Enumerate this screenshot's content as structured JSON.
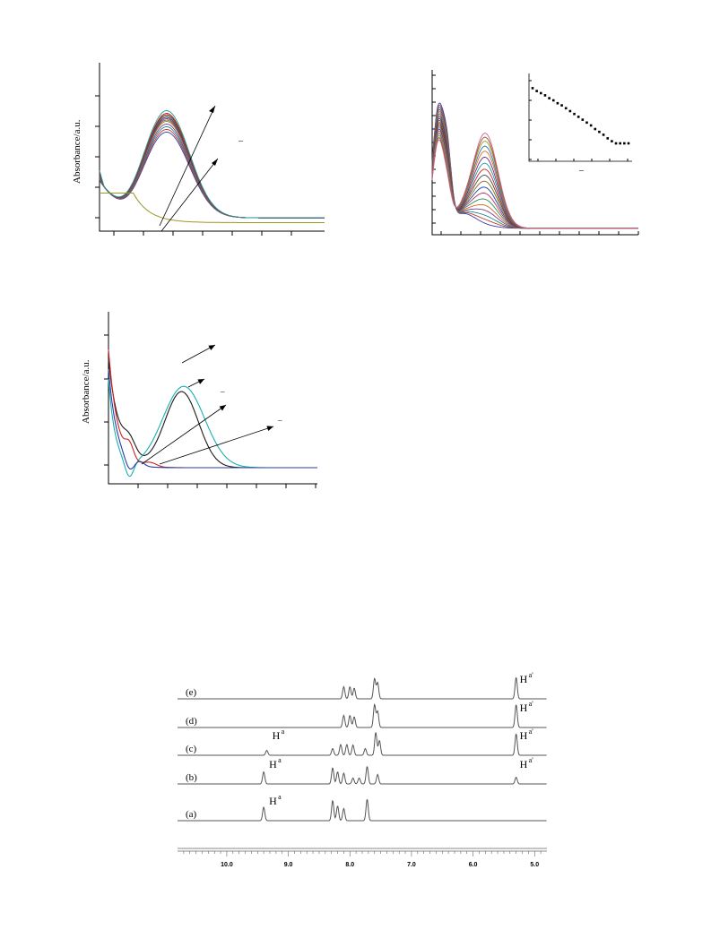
{
  "colors": {
    "axis": "#000000",
    "spectra": [
      "#3a3aa8",
      "#c0392b",
      "#1a8a8a",
      "#7a3a9a",
      "#d2691e",
      "#2e8b57",
      "#b03060",
      "#1e3f9e",
      "#8b6914",
      "#444444",
      "#cc2222",
      "#1a9a9a",
      "#6a2a8a",
      "#e07020",
      "#3070c0",
      "#a0a020",
      "#905030",
      "#d06090"
    ],
    "blank_curve": "#9a9a20",
    "nmr_line": "#555555"
  },
  "panel_a": {
    "ylabel": "Absorbance/a.u.",
    "marker": "–"
  },
  "panel_b": {
    "inset_marker": "–"
  },
  "panel_c": {
    "ylabel": "Absorbance/a.u.",
    "marker1": "–",
    "marker2": "–"
  },
  "chart_data": [
    {
      "type": "line",
      "panel": "a",
      "ylabel": "Absorbance/a.u.",
      "series_count": 12,
      "peak_scale": [
        0.62,
        0.64,
        0.66,
        0.68,
        0.7,
        0.71,
        0.72,
        0.73,
        0.74,
        0.75,
        0.76,
        0.78
      ],
      "blank_present": true
    },
    {
      "type": "line",
      "panel": "b",
      "series_count": 18,
      "peak_scale": [
        0.02,
        0.06,
        0.1,
        0.15,
        0.2,
        0.26,
        0.32,
        0.38,
        0.44,
        0.5,
        0.56,
        0.62,
        0.68,
        0.74,
        0.79,
        0.84,
        0.88,
        0.92
      ],
      "inset": {
        "type": "scatter",
        "y": [
          0.92,
          0.88,
          0.85,
          0.82,
          0.78,
          0.75,
          0.71,
          0.68,
          0.64,
          0.6,
          0.56,
          0.52,
          0.48,
          0.44,
          0.4,
          0.35,
          0.31,
          0.27,
          0.22,
          0.18,
          0.15,
          0.15,
          0.15,
          0.15
        ]
      }
    },
    {
      "type": "line",
      "panel": "c",
      "ylabel": "Absorbance/a.u.",
      "series": [
        {
          "color": "#1a1a1a",
          "peak": 0.7
        },
        {
          "color": "#1ab0b0",
          "peak": 0.55
        },
        {
          "color": "#cc2222",
          "peak": 0.05
        },
        {
          "color": "#2a3aa8",
          "peak": 0.04
        }
      ]
    },
    {
      "type": "line",
      "panel": "nmr",
      "x_ticks": [
        "10.0",
        "9.0",
        "8.0",
        "7.0",
        "6.0",
        "5.0"
      ],
      "x_tick_values": [
        10.0,
        9.0,
        8.0,
        7.0,
        6.0,
        5.0
      ],
      "xlim": [
        10.8,
        4.8
      ],
      "traces": [
        {
          "label": "(e)",
          "peaks": [
            {
              "ppm": 8.1,
              "h": 0.45
            },
            {
              "ppm": 8.0,
              "h": 0.45
            },
            {
              "ppm": 7.93,
              "h": 0.4
            },
            {
              "ppm": 7.6,
              "h": 0.75
            },
            {
              "ppm": 7.55,
              "h": 0.6
            },
            {
              "ppm": 5.3,
              "h": 0.8
            }
          ],
          "tags": [
            {
              "ppm": 5.3,
              "text": "a'"
            }
          ]
        },
        {
          "label": "(d)",
          "peaks": [
            {
              "ppm": 8.1,
              "h": 0.45
            },
            {
              "ppm": 8.0,
              "h": 0.45
            },
            {
              "ppm": 7.93,
              "h": 0.4
            },
            {
              "ppm": 7.6,
              "h": 0.85
            },
            {
              "ppm": 7.55,
              "h": 0.6
            },
            {
              "ppm": 5.3,
              "h": 0.85
            }
          ],
          "tags": [
            {
              "ppm": 5.3,
              "text": "a'"
            }
          ]
        },
        {
          "label": "(c)",
          "peaks": [
            {
              "ppm": 9.35,
              "h": 0.18
            },
            {
              "ppm": 8.28,
              "h": 0.25
            },
            {
              "ppm": 8.15,
              "h": 0.4
            },
            {
              "ppm": 8.05,
              "h": 0.4
            },
            {
              "ppm": 7.95,
              "h": 0.38
            },
            {
              "ppm": 7.75,
              "h": 0.25
            },
            {
              "ppm": 7.58,
              "h": 0.85
            },
            {
              "ppm": 7.52,
              "h": 0.55
            },
            {
              "ppm": 5.3,
              "h": 0.8
            }
          ],
          "tags": [
            {
              "ppm": 9.35,
              "text": "a"
            },
            {
              "ppm": 5.3,
              "text": "a'"
            }
          ]
        },
        {
          "label": "(b)",
          "peaks": [
            {
              "ppm": 9.4,
              "h": 0.45
            },
            {
              "ppm": 8.28,
              "h": 0.6
            },
            {
              "ppm": 8.2,
              "h": 0.45
            },
            {
              "ppm": 8.1,
              "h": 0.4
            },
            {
              "ppm": 7.95,
              "h": 0.22
            },
            {
              "ppm": 7.85,
              "h": 0.22
            },
            {
              "ppm": 7.72,
              "h": 0.65
            },
            {
              "ppm": 7.55,
              "h": 0.35
            },
            {
              "ppm": 5.3,
              "h": 0.25
            }
          ],
          "tags": [
            {
              "ppm": 9.4,
              "text": "a"
            },
            {
              "ppm": 5.3,
              "text": "a'"
            }
          ]
        },
        {
          "label": "(a)",
          "peaks": [
            {
              "ppm": 9.4,
              "h": 0.5
            },
            {
              "ppm": 8.28,
              "h": 0.75
            },
            {
              "ppm": 8.2,
              "h": 0.55
            },
            {
              "ppm": 8.1,
              "h": 0.45
            },
            {
              "ppm": 7.72,
              "h": 0.8
            }
          ],
          "tags": [
            {
              "ppm": 9.4,
              "text": "a"
            }
          ]
        }
      ]
    }
  ]
}
